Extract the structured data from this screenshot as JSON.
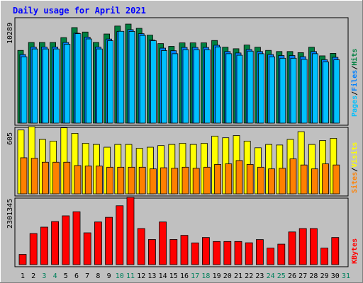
{
  "title": "Daily usage for April 2021",
  "colors": {
    "title": "#0000ff",
    "background": "#c0c0c0",
    "hits": "#008040",
    "files": "#0080ff",
    "pages": "#00c0ff",
    "visits": "#ffff00",
    "sites": "#ff8000",
    "kbytes": "#ff0000",
    "weekday_label": "#000000",
    "weekend_label": "#00805c"
  },
  "right_labels": {
    "top": [
      "Pages",
      "/",
      "Files",
      "/",
      "Hits"
    ],
    "mid": [
      "Sites",
      "/",
      "Visits"
    ],
    "bot": [
      "KBytes"
    ]
  },
  "chart_data": [
    {
      "type": "bar",
      "panel": "top",
      "ymax_label": "10289",
      "ylim": [
        0,
        10289
      ],
      "categories": [
        "1",
        "2",
        "3",
        "4",
        "5",
        "6",
        "7",
        "8",
        "9",
        "10",
        "11",
        "12",
        "13",
        "14",
        "15",
        "16",
        "17",
        "18",
        "19",
        "20",
        "21",
        "22",
        "23",
        "24",
        "25",
        "26",
        "27",
        "28",
        "29",
        "30",
        "31"
      ],
      "series": [
        {
          "name": "Hits",
          "values": [
            7050,
            7820,
            7820,
            7820,
            8290,
            9260,
            8830,
            7820,
            8640,
            9410,
            9600,
            9190,
            8530,
            7710,
            7440,
            7780,
            7780,
            7780,
            8010,
            7360,
            7210,
            7570,
            7360,
            7050,
            6940,
            6940,
            6830,
            7360,
            6520,
            6760,
            null
          ]
        },
        {
          "name": "Files",
          "values": [
            6650,
            7380,
            7380,
            7380,
            7820,
            8720,
            8330,
            7380,
            8150,
            8880,
            9060,
            8670,
            8050,
            7270,
            7020,
            7340,
            7340,
            7340,
            7550,
            6940,
            6800,
            7140,
            6940,
            6650,
            6550,
            6550,
            6440,
            6940,
            6150,
            6380,
            null
          ]
        },
        {
          "name": "Pages",
          "values": [
            6430,
            7190,
            7190,
            7190,
            7650,
            8670,
            8160,
            7190,
            7990,
            8900,
            8890,
            8500,
            7990,
            7030,
            6730,
            7120,
            7120,
            7120,
            7390,
            6730,
            6580,
            6980,
            6730,
            6430,
            6290,
            6290,
            6180,
            6730,
            5930,
            6140,
            null
          ]
        }
      ]
    },
    {
      "type": "bar",
      "panel": "mid",
      "ymax_label": "605",
      "ylim": [
        0,
        605
      ],
      "categories": [
        "1",
        "2",
        "3",
        "4",
        "5",
        "6",
        "7",
        "8",
        "9",
        "10",
        "11",
        "12",
        "13",
        "14",
        "15",
        "16",
        "17",
        "18",
        "19",
        "20",
        "21",
        "22",
        "23",
        "24",
        "25",
        "26",
        "27",
        "28",
        "29",
        "30",
        "31"
      ],
      "series": [
        {
          "name": "Visits",
          "values": [
            575,
            605,
            490,
            475,
            595,
            545,
            455,
            445,
            420,
            445,
            445,
            410,
            420,
            435,
            445,
            455,
            445,
            455,
            520,
            505,
            525,
            475,
            415,
            445,
            440,
            490,
            560,
            445,
            480,
            500,
            null
          ]
        },
        {
          "name": "Sites",
          "values": [
            325,
            320,
            285,
            285,
            285,
            255,
            250,
            250,
            240,
            240,
            240,
            240,
            225,
            235,
            230,
            240,
            230,
            240,
            265,
            270,
            300,
            265,
            240,
            225,
            230,
            315,
            260,
            225,
            270,
            260,
            null
          ]
        }
      ]
    },
    {
      "type": "bar",
      "panel": "bot",
      "ymax_label": "2301345",
      "ylim": [
        0,
        2301345
      ],
      "categories": [
        "1",
        "2",
        "3",
        "4",
        "5",
        "6",
        "7",
        "8",
        "9",
        "10",
        "11",
        "12",
        "13",
        "14",
        "15",
        "16",
        "17",
        "18",
        "19",
        "20",
        "21",
        "22",
        "23",
        "24",
        "25",
        "26",
        "27",
        "28",
        "29",
        "30",
        "31"
      ],
      "series": [
        {
          "name": "KBytes",
          "values": [
            350000,
            1065000,
            1284000,
            1474000,
            1671000,
            1810000,
            1089000,
            1460000,
            1620000,
            2016000,
            2301345,
            1236000,
            861000,
            1460000,
            861000,
            1002000,
            744000,
            929000,
            792000,
            792000,
            792000,
            748000,
            858000,
            565000,
            701000,
            1119000,
            1236000,
            1236000,
            565000,
            929000,
            null
          ]
        }
      ]
    }
  ],
  "x_labels": [
    {
      "text": "1",
      "weekend": false
    },
    {
      "text": "2",
      "weekend": false
    },
    {
      "text": "3",
      "weekend": true
    },
    {
      "text": "4",
      "weekend": true
    },
    {
      "text": "5",
      "weekend": false
    },
    {
      "text": "6",
      "weekend": false
    },
    {
      "text": "7",
      "weekend": false
    },
    {
      "text": "8",
      "weekend": false
    },
    {
      "text": "9",
      "weekend": false
    },
    {
      "text": "10",
      "weekend": true
    },
    {
      "text": "11",
      "weekend": true
    },
    {
      "text": "12",
      "weekend": false
    },
    {
      "text": "13",
      "weekend": false
    },
    {
      "text": "14",
      "weekend": false
    },
    {
      "text": "15",
      "weekend": false
    },
    {
      "text": "16",
      "weekend": false
    },
    {
      "text": "17",
      "weekend": true
    },
    {
      "text": "18",
      "weekend": true
    },
    {
      "text": "19",
      "weekend": false
    },
    {
      "text": "20",
      "weekend": false
    },
    {
      "text": "21",
      "weekend": false
    },
    {
      "text": "22",
      "weekend": false
    },
    {
      "text": "23",
      "weekend": false
    },
    {
      "text": "24",
      "weekend": true
    },
    {
      "text": "25",
      "weekend": true
    },
    {
      "text": "26",
      "weekend": false
    },
    {
      "text": "27",
      "weekend": false
    },
    {
      "text": "28",
      "weekend": false
    },
    {
      "text": "29",
      "weekend": false
    },
    {
      "text": "30",
      "weekend": false
    },
    {
      "text": "31",
      "weekend": true
    }
  ]
}
